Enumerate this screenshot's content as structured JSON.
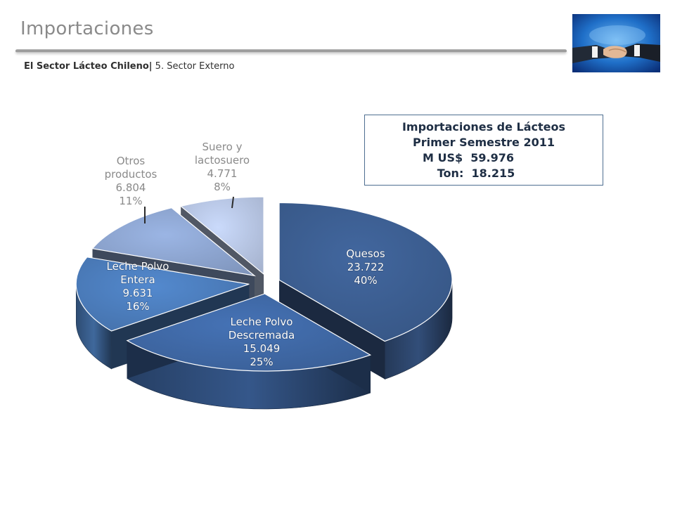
{
  "header": {
    "title": "Importaciones",
    "subtitle_bold": "El Sector Lácteo Chileno",
    "subtitle_sep": "|",
    "subtitle_rest": " 5. Sector Externo"
  },
  "summary": {
    "line1": "Importaciones de Lácteos",
    "line2": "Primer Semestre 2011",
    "line3_label": "M US$",
    "line3_value": "59.976",
    "line4_label": "Ton:",
    "line4_value": "18.215"
  },
  "chart_data": {
    "type": "pie",
    "title": "",
    "slices": [
      {
        "label_lines": [
          "Quesos"
        ],
        "value": 23722,
        "value_label": "23.722",
        "percent": 40,
        "percent_label": "40%",
        "color": "#3b5c8e"
      },
      {
        "label_lines": [
          "Leche Polvo",
          "Descremada"
        ],
        "value": 15049,
        "value_label": "15.049",
        "percent": 25,
        "percent_label": "25%",
        "color": "#3e66a2"
      },
      {
        "label_lines": [
          "Leche Polvo",
          "Entera"
        ],
        "value": 9631,
        "value_label": "9.631",
        "percent": 16,
        "percent_label": "16%",
        "color": "#4a7ab8"
      },
      {
        "label_lines": [
          "Otros",
          "productos"
        ],
        "value": 6804,
        "value_label": "6.804",
        "percent": 11,
        "percent_label": "11%",
        "color": "#8aa2cc"
      },
      {
        "label_lines": [
          "Suero y",
          "lactosuero"
        ],
        "value": 4771,
        "value_label": "4.771",
        "percent": 8,
        "percent_label": "8%",
        "color": "#b4c3e0"
      }
    ]
  }
}
